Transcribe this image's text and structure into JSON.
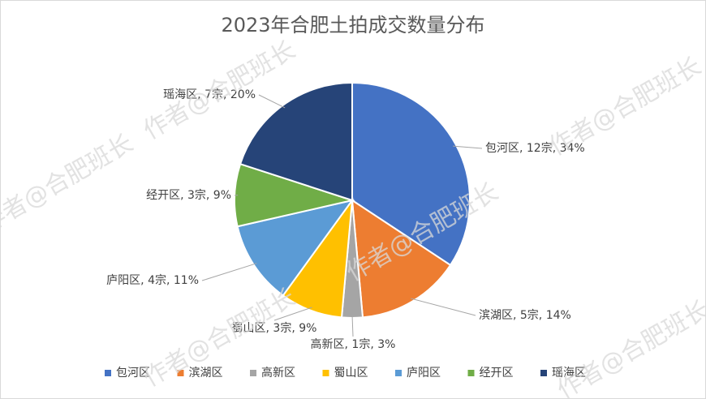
{
  "chart_data": {
    "type": "pie",
    "title": "2023年合肥土拍成交数量分布",
    "categories": [
      "包河区",
      "滨湖区",
      "高新区",
      "蜀山区",
      "庐阳区",
      "经开区",
      "瑶海区"
    ],
    "values": [
      12,
      5,
      1,
      3,
      4,
      3,
      7
    ],
    "value_labels": [
      "包河区, 12宗, 34%",
      "滨湖区, 5宗, 14%",
      "高新区, 1宗, 3%",
      "蜀山区, 3宗, 9%",
      "庐阳区, 4宗, 11%",
      "经开区, 3宗, 9%",
      "瑶海区, 7宗, 20%"
    ],
    "colors": [
      "#4472c4",
      "#ed7d31",
      "#a5a5a5",
      "#ffc000",
      "#5b9bd5",
      "#70ad47",
      "#264478"
    ],
    "legend": "bottom"
  },
  "watermark": "作者@合肥班长"
}
